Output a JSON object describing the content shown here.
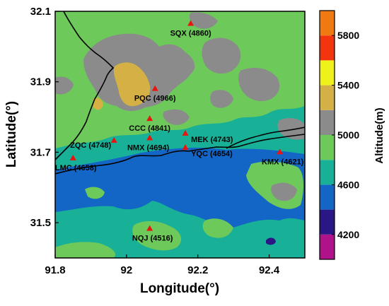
{
  "chart_data": {
    "type": "heatmap",
    "xlabel": "Longitude(°)",
    "ylabel": "Latitude(°)",
    "xlim": [
      91.8,
      92.5
    ],
    "ylim": [
      31.4,
      32.1
    ],
    "x_ticks": [
      91.8,
      92.0,
      92.2,
      92.4
    ],
    "x_tick_labels": [
      "91.8",
      "92",
      "92.2",
      "92.4"
    ],
    "y_ticks": [
      31.5,
      31.7,
      31.9,
      32.1
    ],
    "y_tick_labels": [
      "31.5",
      "31.7",
      "31.9",
      "32.1"
    ],
    "colorbar": {
      "title": "Altitude(m)",
      "range": [
        4000,
        6000
      ],
      "levels": [
        4000,
        4200,
        4400,
        4600,
        4800,
        5000,
        5200,
        5400,
        5600,
        5800,
        6000
      ],
      "tick_values": [
        4200,
        4600,
        5000,
        5400,
        5800
      ],
      "tick_labels": [
        "4200",
        "4600",
        "5000",
        "5400",
        "5800"
      ],
      "colors": [
        "#b0128c",
        "#2a1785",
        "#1466c6",
        "#18b198",
        "#6dc95a",
        "#8b8b8b",
        "#d4b045",
        "#eef21a",
        "#f2350e",
        "#f07a12"
      ]
    },
    "stations": [
      {
        "code": "SQX",
        "label": "SQX (4860)",
        "lon": 92.18,
        "lat": 32.065,
        "altitude": 4860
      },
      {
        "code": "PQC",
        "label": "PQC (4966)",
        "lon": 92.08,
        "lat": 31.88,
        "altitude": 4966
      },
      {
        "code": "CCC",
        "label": "CCC (4841)",
        "lon": 92.065,
        "lat": 31.795,
        "altitude": 4841
      },
      {
        "code": "MEK",
        "label": "MEK (4743)",
        "lon": 92.165,
        "lat": 31.753,
        "altitude": 4743
      },
      {
        "code": "ZQC",
        "label": "ZQC (4748)",
        "lon": 91.965,
        "lat": 31.733,
        "altitude": 4748
      },
      {
        "code": "NMX",
        "label": "NMX (4694)",
        "lon": 92.065,
        "lat": 31.74,
        "altitude": 4694
      },
      {
        "code": "YQC",
        "label": "YQC (4654)",
        "lon": 92.165,
        "lat": 31.713,
        "altitude": 4654
      },
      {
        "code": "KMX",
        "label": "KMX (4621)",
        "lon": 92.43,
        "lat": 31.7,
        "altitude": 4621
      },
      {
        "code": "LMC",
        "label": "LMC (4658)",
        "lon": 91.85,
        "lat": 31.683,
        "altitude": 4658
      },
      {
        "code": "NQJ",
        "label": "NQJ (4516)",
        "lon": 92.065,
        "lat": 31.483,
        "altitude": 4516
      }
    ],
    "colors": {
      "station_marker": "#e8150f",
      "boundary_line": "#000000",
      "background_fill": "#18b198"
    }
  }
}
